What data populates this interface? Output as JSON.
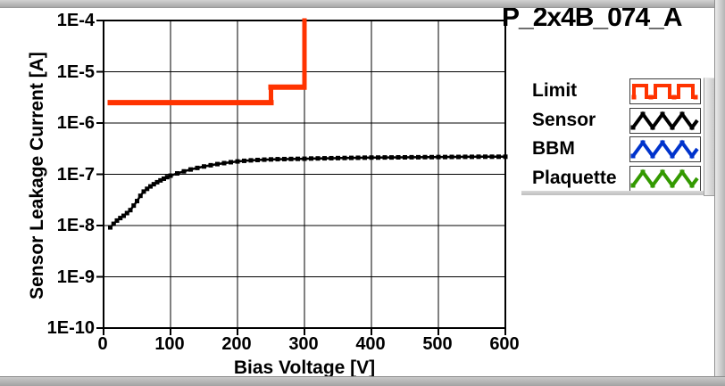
{
  "header": {
    "title": "P_2x4B_074_A"
  },
  "chart_data": {
    "type": "line",
    "title": "P_2x4B_074_A",
    "xlabel": "Bias Voltage [V]",
    "ylabel": "Sensor Leakage Current [A]",
    "grid": true,
    "legend_position": "right",
    "x_axis": {
      "min": 0,
      "max": 600,
      "ticks": [
        0,
        100,
        200,
        300,
        400,
        500,
        600
      ],
      "tick_labels": [
        "0",
        "100",
        "200",
        "300",
        "400",
        "500",
        "600"
      ]
    },
    "y_axis": {
      "scale": "log",
      "min": 1e-10,
      "max": 0.0001,
      "ticks": [
        0.0001,
        1e-05,
        1e-06,
        1e-07,
        1e-08,
        1e-09,
        1e-10
      ],
      "tick_labels": [
        "1E-4",
        "1E-5",
        "1E-6",
        "1E-7",
        "1E-8",
        "1E-9",
        "1E-10"
      ]
    },
    "series": [
      {
        "name": "Limit",
        "color": "#ff3300",
        "icon": "square-wave-icon",
        "line": "thick-dashed",
        "points": [
          [
            10,
            2.5e-06
          ],
          [
            250,
            2.5e-06
          ],
          [
            250,
            5e-06
          ],
          [
            300,
            5e-06
          ],
          [
            300,
            0.0001
          ]
        ]
      },
      {
        "name": "Sensor",
        "color": "#000000",
        "icon": "zigzag-wave-icon",
        "marker": "square",
        "points": [
          [
            10,
            9.2e-09
          ],
          [
            15,
            1.08e-08
          ],
          [
            20,
            1.25e-08
          ],
          [
            25,
            1.4e-08
          ],
          [
            30,
            1.55e-08
          ],
          [
            35,
            1.75e-08
          ],
          [
            40,
            2e-08
          ],
          [
            45,
            2.45e-08
          ],
          [
            50,
            3e-08
          ],
          [
            55,
            3.8e-08
          ],
          [
            60,
            4.6e-08
          ],
          [
            65,
            5.2e-08
          ],
          [
            70,
            5.8e-08
          ],
          [
            75,
            6.4e-08
          ],
          [
            80,
            7e-08
          ],
          [
            85,
            7.6e-08
          ],
          [
            90,
            8.2e-08
          ],
          [
            95,
            8.8e-08
          ],
          [
            100,
            9.4e-08
          ],
          [
            110,
            1.04e-07
          ],
          [
            120,
            1.14e-07
          ],
          [
            130,
            1.24e-07
          ],
          [
            140,
            1.33e-07
          ],
          [
            150,
            1.42e-07
          ],
          [
            160,
            1.5e-07
          ],
          [
            170,
            1.58e-07
          ],
          [
            180,
            1.65e-07
          ],
          [
            190,
            1.72e-07
          ],
          [
            200,
            1.78e-07
          ],
          [
            210,
            1.83e-07
          ],
          [
            220,
            1.87e-07
          ],
          [
            230,
            1.9e-07
          ],
          [
            240,
            1.93e-07
          ],
          [
            250,
            1.95e-07
          ],
          [
            260,
            1.97e-07
          ],
          [
            270,
            1.98e-07
          ],
          [
            280,
            1.99e-07
          ],
          [
            290,
            2e-07
          ],
          [
            300,
            2.01e-07
          ],
          [
            310,
            2.03e-07
          ],
          [
            320,
            2.04e-07
          ],
          [
            330,
            2.05e-07
          ],
          [
            340,
            2.06e-07
          ],
          [
            350,
            2.07e-07
          ],
          [
            360,
            2.08e-07
          ],
          [
            370,
            2.09e-07
          ],
          [
            380,
            2.1e-07
          ],
          [
            390,
            2.11e-07
          ],
          [
            400,
            2.12e-07
          ],
          [
            410,
            2.12e-07
          ],
          [
            420,
            2.13e-07
          ],
          [
            430,
            2.13e-07
          ],
          [
            440,
            2.14e-07
          ],
          [
            450,
            2.14e-07
          ],
          [
            460,
            2.15e-07
          ],
          [
            470,
            2.15e-07
          ],
          [
            480,
            2.16e-07
          ],
          [
            490,
            2.16e-07
          ],
          [
            500,
            2.17e-07
          ],
          [
            510,
            2.17e-07
          ],
          [
            520,
            2.18e-07
          ],
          [
            530,
            2.18e-07
          ],
          [
            540,
            2.19e-07
          ],
          [
            550,
            2.19e-07
          ],
          [
            560,
            2.2e-07
          ],
          [
            570,
            2.2e-07
          ],
          [
            580,
            2.2e-07
          ],
          [
            590,
            2.2e-07
          ],
          [
            600,
            2.2e-07
          ]
        ]
      },
      {
        "name": "BBM",
        "color": "#0033cc",
        "icon": "zigzag-wave-icon",
        "points": []
      },
      {
        "name": "Plaquette",
        "color": "#339900",
        "icon": "zigzag-wave-icon",
        "points": []
      }
    ]
  }
}
